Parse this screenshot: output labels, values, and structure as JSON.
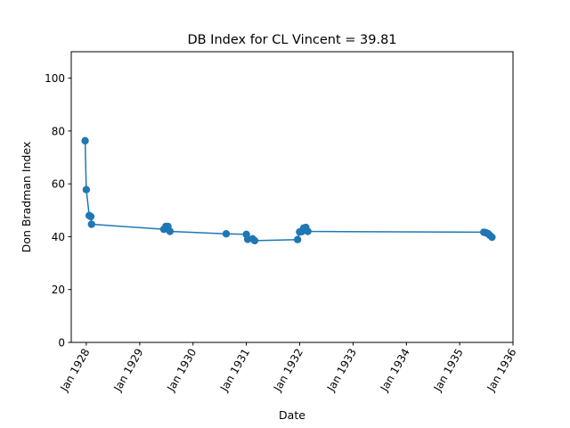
{
  "chart_data": {
    "type": "line",
    "title": "DB Index for CL Vincent = 39.81",
    "xlabel": "Date",
    "ylabel": "Don Bradman Index",
    "xlim": [
      "1927-09-20",
      "1936-01-01"
    ],
    "ylim": [
      0,
      110
    ],
    "x_ticks": [
      {
        "label": "Jan 1928",
        "date": "1928-01-01"
      },
      {
        "label": "Jan 1929",
        "date": "1929-01-01"
      },
      {
        "label": "Jan 1930",
        "date": "1930-01-01"
      },
      {
        "label": "Jan 1931",
        "date": "1931-01-01"
      },
      {
        "label": "Jan 1932",
        "date": "1932-01-01"
      },
      {
        "label": "Jan 1933",
        "date": "1933-01-01"
      },
      {
        "label": "Jan 1934",
        "date": "1934-01-01"
      },
      {
        "label": "Jan 1935",
        "date": "1935-01-01"
      },
      {
        "label": "Jan 1936",
        "date": "1936-01-01"
      }
    ],
    "y_ticks": [
      0,
      20,
      40,
      60,
      80,
      100
    ],
    "grid": false,
    "color": "#1f77b4",
    "series": [
      {
        "points": [
          {
            "x": "1927-12-24",
            "y": 76.3
          },
          {
            "x": "1928-01-01",
            "y": 57.8
          },
          {
            "x": "1928-01-21",
            "y": 48.0
          },
          {
            "x": "1928-02-01",
            "y": 47.6
          },
          {
            "x": "1928-02-06",
            "y": 44.7
          },
          {
            "x": "1929-06-15",
            "y": 42.8
          },
          {
            "x": "1929-06-29",
            "y": 43.9
          },
          {
            "x": "1929-07-13",
            "y": 43.9
          },
          {
            "x": "1929-07-27",
            "y": 42.0
          },
          {
            "x": "1930-08-16",
            "y": 41.1
          },
          {
            "x": "1931-01-01",
            "y": 40.9
          },
          {
            "x": "1931-01-10",
            "y": 39.0
          },
          {
            "x": "1931-02-13",
            "y": 39.2
          },
          {
            "x": "1931-02-27",
            "y": 38.5
          },
          {
            "x": "1931-12-18",
            "y": 38.9
          },
          {
            "x": "1932-01-01",
            "y": 41.8
          },
          {
            "x": "1932-01-15",
            "y": 41.9
          },
          {
            "x": "1932-01-29",
            "y": 43.3
          },
          {
            "x": "1932-02-12",
            "y": 43.5
          },
          {
            "x": "1932-02-26",
            "y": 42.0
          },
          {
            "x": "1935-06-15",
            "y": 41.7
          },
          {
            "x": "1935-06-29",
            "y": 41.5
          },
          {
            "x": "1935-07-13",
            "y": 41.2
          },
          {
            "x": "1935-07-27",
            "y": 40.5
          },
          {
            "x": "1935-08-10",
            "y": 39.8
          }
        ]
      }
    ]
  }
}
